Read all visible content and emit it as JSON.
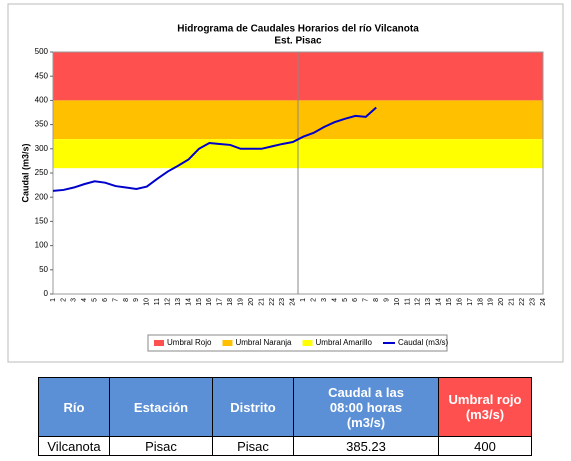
{
  "chart_data": {
    "type": "line",
    "title": "Hidrograma de Caudales Horarios del río Vilcanota",
    "subtitle": "Est. Pisac",
    "y_label": "Caudal  (m3/s)",
    "categories": [
      "1",
      "2",
      "3",
      "4",
      "5",
      "6",
      "7",
      "8",
      "9",
      "10",
      "11",
      "12",
      "13",
      "14",
      "15",
      "16",
      "17",
      "18",
      "19",
      "20",
      "21",
      "22",
      "23",
      "24",
      "1",
      "2",
      "3",
      "4",
      "5",
      "6",
      "7",
      "8",
      "9",
      "10",
      "11",
      "12",
      "13",
      "14",
      "15",
      "16",
      "17",
      "18",
      "19",
      "20",
      "21",
      "22",
      "23",
      "24"
    ],
    "ylim": [
      0,
      500
    ],
    "yticks": [
      0,
      50,
      100,
      150,
      200,
      250,
      300,
      350,
      400,
      450,
      500
    ],
    "bands": [
      {
        "name": "Umbral Rojo",
        "color": "#ff5050",
        "range": [
          400,
          500
        ]
      },
      {
        "name": "Umbral Naranja",
        "color": "#ffc000",
        "range": [
          320,
          400
        ]
      },
      {
        "name": "Umbral Amarillo",
        "color": "#ffff00",
        "range": [
          260,
          320
        ]
      }
    ],
    "series": [
      {
        "name": "Caudal (m3/s)",
        "color": "#0000cc",
        "values": [
          213,
          215,
          220,
          227,
          233,
          230,
          223,
          220,
          217,
          222,
          238,
          253,
          265,
          278,
          300,
          312,
          310,
          308,
          300,
          300,
          300,
          305,
          310,
          314,
          325,
          333,
          345,
          355,
          362,
          368,
          366,
          385.23,
          null,
          null,
          null,
          null,
          null,
          null,
          null,
          null,
          null,
          null,
          null,
          null,
          null,
          null,
          null,
          null
        ]
      }
    ]
  },
  "table": {
    "headers": [
      "Río",
      "Estación",
      "Distrito",
      "Caudal a las 08:00 horas (m3/s)",
      "Umbral rojo (m3/s)"
    ],
    "rows": [
      [
        "Vilcanota",
        "Pisac",
        "Pisac",
        "385.23",
        "400"
      ]
    ]
  }
}
